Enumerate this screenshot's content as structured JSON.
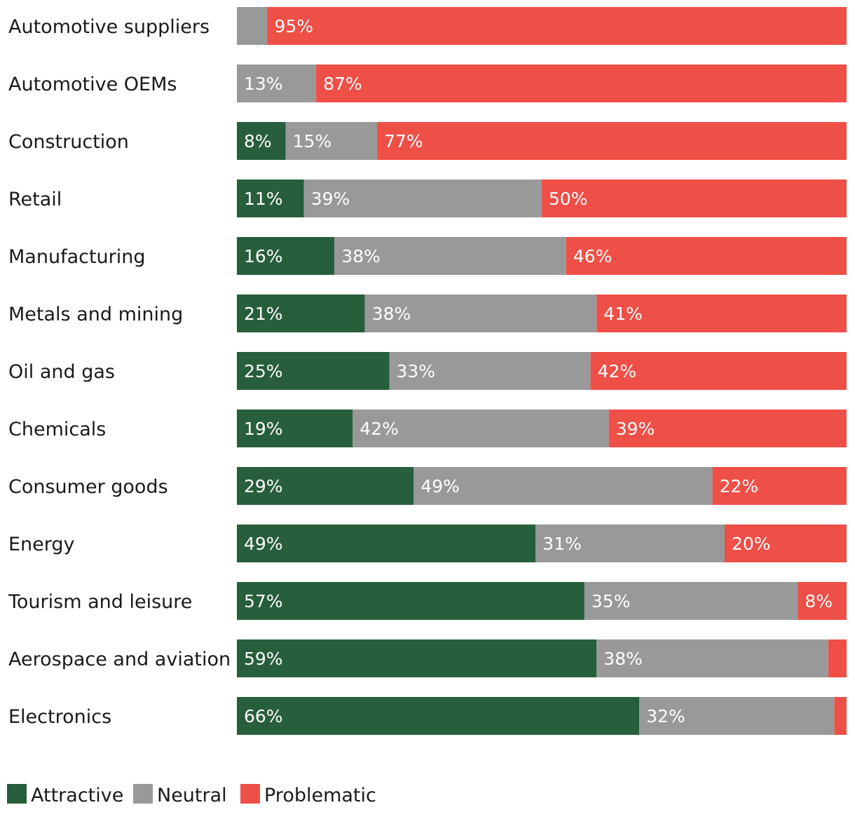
{
  "colors": {
    "attractive": "#275e3b",
    "neutral": "#999999",
    "problematic": "#ee4f47"
  },
  "legend": [
    {
      "key": "attractive",
      "label": "Attractive"
    },
    {
      "key": "neutral",
      "label": "Neutral"
    },
    {
      "key": "problematic",
      "label": "Problematic"
    }
  ],
  "chart_data": {
    "type": "bar",
    "orientation": "horizontal",
    "stacked": true,
    "normalized": true,
    "title": "",
    "xlabel": "",
    "ylabel": "",
    "legend_position": "bottom-left",
    "categories": [
      "Automotive suppliers",
      "Automotive OEMs",
      "Construction",
      "Retail",
      "Manufacturing",
      "Metals and mining",
      "Oil and gas",
      "Chemicals",
      "Consumer goods",
      "Energy",
      "Tourism and leisure",
      "Aerospace and aviation",
      "Electronics"
    ],
    "series": [
      {
        "name": "Attractive",
        "key": "attractive",
        "values": [
          0,
          0,
          8,
          11,
          16,
          21,
          25,
          19,
          29,
          49,
          57,
          59,
          66
        ],
        "labels": [
          "",
          "",
          "8%",
          "11%",
          "16%",
          "21%",
          "25%",
          "19%",
          "29%",
          "49%",
          "57%",
          "59%",
          "66%"
        ]
      },
      {
        "name": "Neutral",
        "key": "neutral",
        "values": [
          5,
          13,
          15,
          39,
          38,
          38,
          33,
          42,
          49,
          31,
          35,
          38,
          32
        ],
        "labels": [
          "",
          "13%",
          "15%",
          "39%",
          "38%",
          "38%",
          "33%",
          "42%",
          "49%",
          "31%",
          "35%",
          "38%",
          "32%"
        ]
      },
      {
        "name": "Problematic",
        "key": "problematic",
        "values": [
          95,
          87,
          77,
          50,
          46,
          41,
          42,
          39,
          22,
          20,
          8,
          3,
          2
        ],
        "labels": [
          "95%",
          "87%",
          "77%",
          "50%",
          "46%",
          "41%",
          "42%",
          "39%",
          "22%",
          "20%",
          "8%",
          "",
          ""
        ]
      }
    ]
  }
}
